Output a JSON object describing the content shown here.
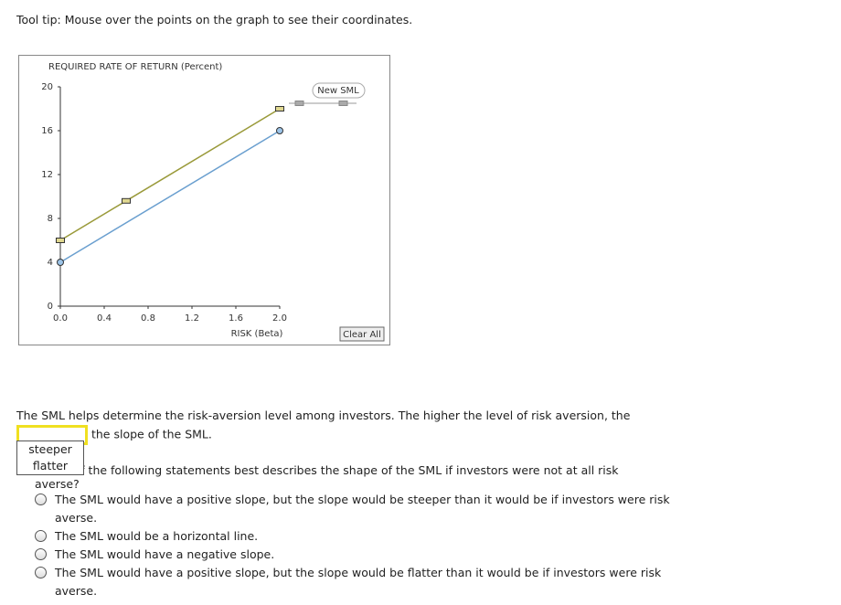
{
  "tooltip": "Tool tip: Mouse over the points on the graph to see their coordinates.",
  "chart_data": {
    "type": "line",
    "y_label": "REQUIRED RATE OF RETURN (Percent)",
    "x_label": "RISK (Beta)",
    "xlim": [
      0,
      2.0
    ],
    "ylim": [
      0,
      20
    ],
    "xticks": [
      {
        "value": 0,
        "label": "0.0"
      },
      0.4,
      0.8,
      1.2,
      1.6,
      {
        "value": 2.0,
        "label": "2.0"
      }
    ],
    "yticks": [
      0,
      4,
      8,
      12,
      16,
      20
    ],
    "series": [
      {
        "color": "#6a9fcf",
        "marker": "circle",
        "x": [
          0,
          2.0
        ],
        "values": [
          4,
          16
        ]
      },
      {
        "name": "New SML",
        "color": "#9a9a3a",
        "marker": "square",
        "x": [
          0,
          0.6,
          2.0
        ],
        "values": [
          6,
          9.6,
          18
        ]
      }
    ],
    "button": "Clear All"
  },
  "question1": {
    "before": "The SML helps determine the risk-aversion level among investors. The higher the level of risk aversion, the",
    "after": "the slope of the SML.",
    "options": [
      "steeper",
      "flatter"
    ]
  },
  "question2": {
    "text": "Which of the following statements best describes the shape of the SML if investors were not at all risk averse?",
    "options": [
      "The SML would have a positive slope, but the slope would be steeper than it would be if investors were risk averse.",
      "The SML would be a horizontal line.",
      "The SML would have a negative slope.",
      "The SML would have a positive slope, but the slope would be flatter than it would be if investors were risk averse."
    ]
  }
}
